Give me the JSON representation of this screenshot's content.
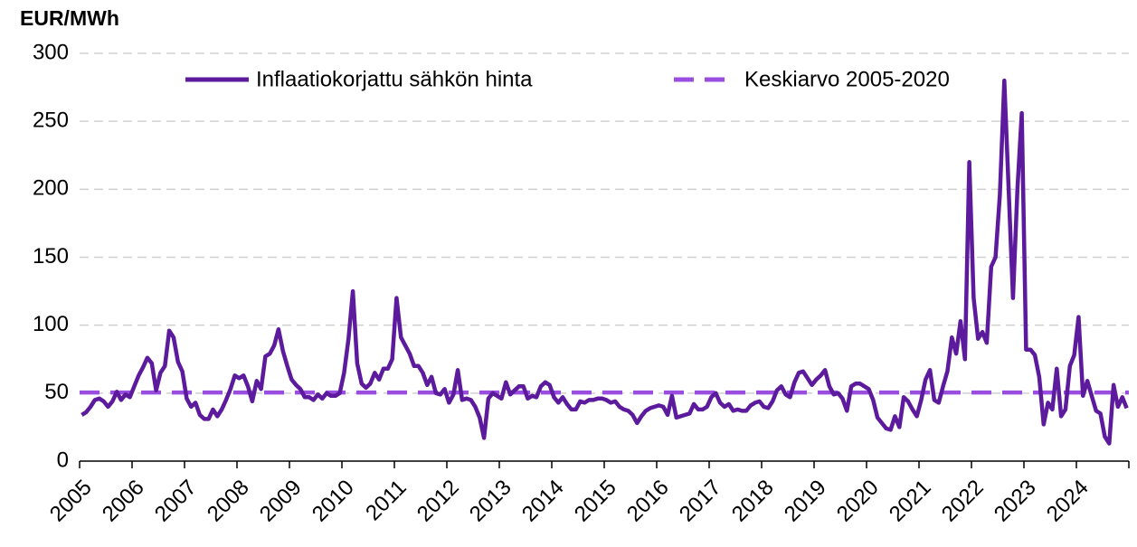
{
  "chart_data": {
    "type": "line",
    "ylabel": "EUR/MWh",
    "categories": [
      "2005",
      null,
      null,
      null,
      null,
      null,
      null,
      null,
      null,
      null,
      null,
      null,
      "2006",
      null,
      null,
      null,
      null,
      null,
      null,
      null,
      null,
      null,
      null,
      null,
      "2007",
      null,
      null,
      null,
      null,
      null,
      null,
      null,
      null,
      null,
      null,
      null,
      "2008",
      null,
      null,
      null,
      null,
      null,
      null,
      null,
      null,
      null,
      null,
      null,
      "2009",
      null,
      null,
      null,
      null,
      null,
      null,
      null,
      null,
      null,
      null,
      null,
      "2010",
      null,
      null,
      null,
      null,
      null,
      null,
      null,
      null,
      null,
      null,
      null,
      "2011",
      null,
      null,
      null,
      null,
      null,
      null,
      null,
      null,
      null,
      null,
      null,
      "2012",
      null,
      null,
      null,
      null,
      null,
      null,
      null,
      null,
      null,
      null,
      null,
      "2013",
      null,
      null,
      null,
      null,
      null,
      null,
      null,
      null,
      null,
      null,
      null,
      "2014",
      null,
      null,
      null,
      null,
      null,
      null,
      null,
      null,
      null,
      null,
      null,
      "2015",
      null,
      null,
      null,
      null,
      null,
      null,
      null,
      null,
      null,
      null,
      null,
      "2016",
      null,
      null,
      null,
      null,
      null,
      null,
      null,
      null,
      null,
      null,
      null,
      "2017",
      null,
      null,
      null,
      null,
      null,
      null,
      null,
      null,
      null,
      null,
      null,
      "2018",
      null,
      null,
      null,
      null,
      null,
      null,
      null,
      null,
      null,
      null,
      null,
      "2019",
      null,
      null,
      null,
      null,
      null,
      null,
      null,
      null,
      null,
      null,
      null,
      "2020",
      null,
      null,
      null,
      null,
      null,
      null,
      null,
      null,
      null,
      null,
      null,
      "2021",
      null,
      null,
      null,
      null,
      null,
      null,
      null,
      null,
      null,
      null,
      null,
      "2022",
      null,
      null,
      null,
      null,
      null,
      null,
      null,
      null,
      null,
      null,
      null,
      "2023",
      null,
      null,
      null,
      null,
      null,
      null,
      null,
      null,
      null,
      null,
      null,
      "2024",
      null,
      null,
      null,
      null,
      null,
      null,
      null,
      null,
      null,
      null,
      null
    ],
    "series": [
      {
        "name": "Inflaatiokorjattu sähkön hinta",
        "color": "#5c1a9c",
        "values": [
          34,
          36,
          40,
          45,
          46,
          44,
          40,
          44,
          51,
          45,
          49,
          47,
          55,
          63,
          69,
          76,
          72,
          52,
          65,
          70,
          96,
          91,
          73,
          66,
          46,
          40,
          43,
          34,
          31,
          31,
          38,
          33,
          38,
          45,
          53,
          63,
          61,
          63,
          55,
          44,
          59,
          53,
          77,
          79,
          85,
          97,
          81,
          70,
          60,
          56,
          53,
          47,
          47,
          45,
          49,
          46,
          50,
          48,
          48,
          50,
          65,
          90,
          125,
          72,
          57,
          54,
          57,
          65,
          60,
          68,
          68,
          75,
          120,
          91,
          85,
          79,
          70,
          70,
          65,
          56,
          62,
          50,
          49,
          53,
          43,
          49,
          67,
          45,
          46,
          45,
          40,
          32,
          17,
          46,
          50,
          48,
          46,
          58,
          49,
          52,
          55,
          55,
          46,
          48,
          47,
          55,
          58,
          56,
          47,
          43,
          47,
          42,
          38,
          38,
          44,
          43,
          45,
          45,
          46,
          46,
          45,
          43,
          44,
          40,
          38,
          37,
          34,
          28,
          33,
          37,
          39,
          40,
          41,
          40,
          34,
          48,
          32,
          33,
          34,
          35,
          42,
          38,
          38,
          40,
          47,
          50,
          43,
          40,
          42,
          37,
          38,
          37,
          37,
          41,
          43,
          44,
          40,
          39,
          44,
          52,
          55,
          49,
          47,
          58,
          65,
          66,
          61,
          56,
          60,
          63,
          67,
          55,
          49,
          50,
          46,
          37,
          55,
          57,
          57,
          55,
          53,
          45,
          32,
          28,
          24,
          23,
          33,
          25,
          47,
          44,
          38,
          33,
          45,
          60,
          67,
          45,
          43,
          55,
          66,
          91,
          79,
          103,
          75,
          220,
          120,
          90,
          95,
          87,
          143,
          150,
          196,
          280,
          200,
          120,
          200,
          256,
          82,
          82,
          78,
          62,
          27,
          43,
          38,
          68,
          33,
          38,
          70,
          78,
          106,
          48,
          59,
          48,
          37,
          35,
          18,
          13,
          56,
          40,
          47,
          39
        ]
      },
      {
        "name": "Keskiarvo 2005-2020",
        "color": "#9a4ee0",
        "value": 50.5
      }
    ],
    "ylim": [
      0,
      300
    ],
    "yticks": [
      0,
      50,
      100,
      150,
      200,
      250,
      300
    ],
    "grid": true
  }
}
